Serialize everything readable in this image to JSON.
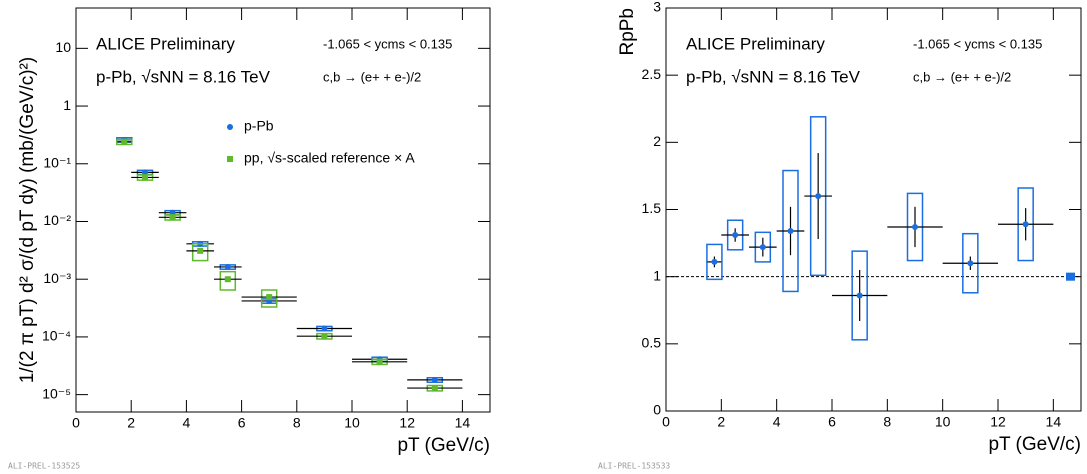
{
  "chart_data": [
    {
      "type": "scatter",
      "xlabel": "pT (GeV/c)",
      "ylabel": "1/(2 π pT) d² σ/(d pT dy) (mb/(GeV/c)²)",
      "annotations": [
        "ALICE Preliminary",
        "-1.065 < ycms < 0.135",
        "p-Pb, √sNN = 8.16 TeV",
        "c,b → (e+ + e-)/2"
      ],
      "footer": "ALI-PREL-153525",
      "log_y": true,
      "xlim": [
        0,
        15
      ],
      "xticks": [
        0,
        2,
        4,
        6,
        8,
        10,
        12,
        14
      ],
      "ylim": [
        5e-06,
        50
      ],
      "yticks": [
        {
          "value": 1e-05,
          "label": "10⁻⁵"
        },
        {
          "value": 0.0001,
          "label": "10⁻⁴"
        },
        {
          "value": 0.001,
          "label": "10⁻³"
        },
        {
          "value": 0.01,
          "label": "10⁻²"
        },
        {
          "value": 0.1,
          "label": "10⁻¹"
        },
        1,
        10
      ],
      "series": [
        {
          "name": "p-Pb",
          "color": "#1a6ee0",
          "marker": "circle",
          "x": [
            1.75,
            2.5,
            3.5,
            4.5,
            5.5,
            7,
            9,
            11,
            13
          ],
          "xerr": [
            0.25,
            0.5,
            0.5,
            0.5,
            0.5,
            1,
            1,
            1,
            1
          ],
          "values": [
            0.26,
            0.071,
            0.0142,
            0.0041,
            0.00163,
            0.00042,
            0.00014,
            4.1e-05,
            1.8e-05
          ],
          "sys": [
            0.022,
            0.006,
            0.0012,
            0.00035,
            0.00014,
            3.6e-05,
            1.2e-05,
            3.5e-06,
            1.6e-06
          ]
        },
        {
          "name": "pp, √s-scaled reference × A",
          "color": "#5dbb2b",
          "marker": "square",
          "x": [
            1.75,
            2.5,
            3.5,
            4.5,
            5.5,
            7,
            9,
            11,
            13
          ],
          "xerr": [
            0.25,
            0.5,
            0.5,
            0.5,
            0.5,
            1,
            1,
            1,
            1
          ],
          "values": [
            0.24,
            0.058,
            0.0118,
            0.0031,
            0.001,
            0.00049,
            0.000103,
            3.7e-05,
            1.3e-05
          ],
          "sys": [
            0.024,
            0.006,
            0.0012,
            0.001,
            0.00035,
            0.00016,
            1.1e-05,
            3.7e-06,
            1.4e-06
          ]
        }
      ]
    },
    {
      "type": "scatter",
      "xlabel": "pT (GeV/c)",
      "ylabel": "RpPb",
      "annotations": [
        "ALICE Preliminary",
        "-1.065 < ycms < 0.135",
        "p-Pb, √sNN = 8.16 TeV",
        "c,b → (e+ + e-)/2"
      ],
      "footer": "ALI-PREL-153533",
      "log_y": false,
      "xlim": [
        0,
        15
      ],
      "xticks": [
        0,
        2,
        4,
        6,
        8,
        10,
        12,
        14
      ],
      "ylim": [
        0,
        3
      ],
      "yticks": [
        0,
        0.5,
        1,
        1.5,
        2,
        2.5,
        3
      ],
      "reference_line": 1,
      "norm_uncertainty": 0.03,
      "series": [
        {
          "color": "#1a6ee0",
          "marker": "circle",
          "x": [
            1.75,
            2.5,
            3.5,
            4.5,
            5.5,
            7,
            9,
            11,
            13
          ],
          "xerr": [
            0.25,
            0.5,
            0.5,
            0.5,
            0.5,
            1,
            1,
            1,
            1
          ],
          "values": [
            1.11,
            1.31,
            1.22,
            1.34,
            1.6,
            0.86,
            1.37,
            1.1,
            1.39
          ],
          "stat": [
            0.04,
            0.05,
            0.07,
            0.18,
            0.32,
            0.19,
            0.15,
            0.05,
            0.12
          ],
          "sys": [
            0.13,
            0.11,
            0.11,
            0.45,
            0.59,
            0.33,
            0.25,
            0.22,
            0.27
          ]
        }
      ]
    }
  ]
}
